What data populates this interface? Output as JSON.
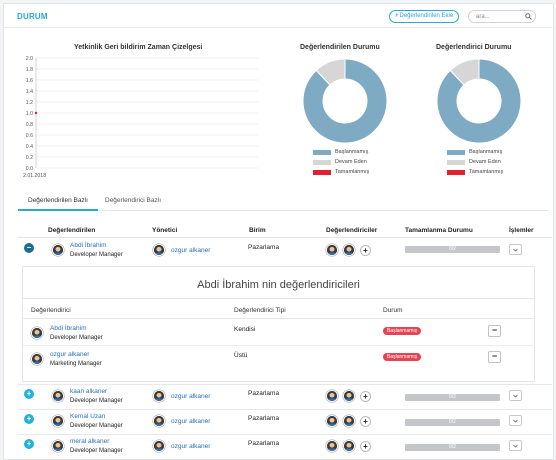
{
  "header": {
    "title": "DURUM",
    "add_label": "Değerlendirilen Ekle",
    "search_placeholder": "ara..."
  },
  "colors": {
    "accent": "#2aa7d6",
    "not_started": "#7eaac4",
    "in_progress": "#d6d6d6",
    "completed": "#e0202e",
    "badge": "#e84352"
  },
  "line_chart": {
    "chart_data": {
      "type": "line",
      "title": "Yetkinlik Geri bildirim Zaman Çizelgesi",
      "y_ticks": [
        "2.0",
        "1.8",
        "1.6",
        "1.4",
        "1.2",
        "1.0",
        "0.8",
        "0.6",
        "0.4",
        "0.2",
        "0.0"
      ],
      "ylim": [
        0,
        2
      ],
      "x_ticks": [
        "2.01.2018"
      ],
      "x": [
        "2.01.2018"
      ],
      "values": [
        1.0
      ],
      "grid": true
    }
  },
  "pie_charts": [
    {
      "chart_data": {
        "type": "pie",
        "title": "Değerlendirilen Durumu",
        "categories": [
          "Başlanmamış",
          "Devam Eden",
          "Tamamlanmış"
        ],
        "values": [
          88,
          12,
          0
        ]
      }
    },
    {
      "chart_data": {
        "type": "pie",
        "title": "Değerlendirici Durumu",
        "categories": [
          "Başlanmamış",
          "Devam Eden",
          "Tamamlanmış"
        ],
        "values": [
          88,
          12,
          0
        ]
      }
    }
  ],
  "tabs": [
    {
      "label": "Değerlendirilen Bazlı"
    },
    {
      "label": "Değerlendirici Bazlı"
    }
  ],
  "table": {
    "headers": {
      "evaluated": "Değerlendirilen",
      "manager": "Yönetici",
      "unit": "Birim",
      "evaluators": "Değerlendiriciler",
      "completion": "Tamamlanma Durumu",
      "actions": "İşlemler"
    },
    "rows": [
      {
        "name": "Abdi İbrahim",
        "title": "Developer Manager",
        "manager": "ozgur alkaner",
        "unit": "Pazarlama",
        "progress_label": "0/2",
        "progress": 0
      },
      {
        "name": "kaan alkaner",
        "title": "Developer Manager",
        "manager": "ozgur alkaner",
        "unit": "Pazarlama",
        "progress_label": "0/2",
        "progress": 0
      },
      {
        "name": "Kemal Uzan",
        "title": "Developer Manager",
        "manager": "ozgur alkaner",
        "unit": "Pazarlama",
        "progress_label": "0/2",
        "progress": 0
      },
      {
        "name": "meral alkaner",
        "title": "Developer Manager",
        "manager": "ozgur alkaner",
        "unit": "Pazarlama",
        "progress_label": "0/2",
        "progress": 0
      }
    ]
  },
  "detail": {
    "title": "Abdi İbrahim nin değerlendiricileri",
    "headers": {
      "evaluator": "Değerlendirici",
      "type": "Değerlendirici Tipi",
      "status": "Durum"
    },
    "rows": [
      {
        "name": "Abdi İbrahim",
        "title": "Developer Manager",
        "type": "Kendisi",
        "status": "Başlanmamış"
      },
      {
        "name": "ozgur alkaner",
        "title": "Marketing Manager",
        "type": "Üstü",
        "status": "Başlanmamış"
      }
    ]
  }
}
